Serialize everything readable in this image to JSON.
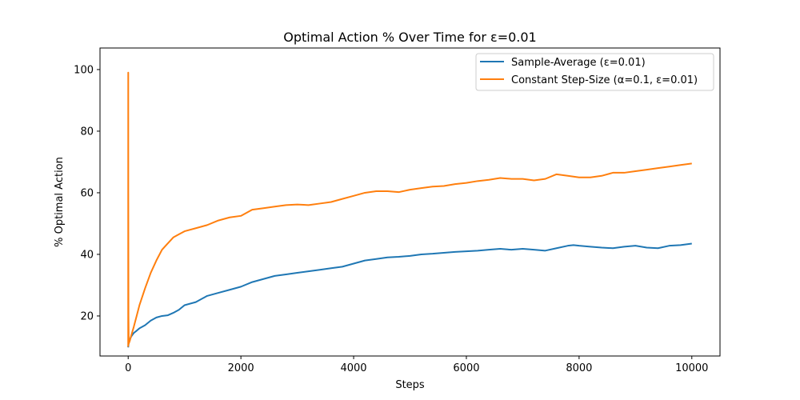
{
  "chart_data": {
    "type": "line",
    "title": "Optimal Action % Over Time for ε=0.01",
    "xlabel": "Steps",
    "ylabel": "% Optimal Action",
    "xlim": [
      -500,
      10500
    ],
    "ylim": [
      7,
      107
    ],
    "xticks": [
      0,
      2000,
      4000,
      6000,
      8000,
      10000
    ],
    "yticks": [
      20,
      40,
      60,
      80,
      100
    ],
    "grid": false,
    "legend_position": "upper right",
    "series": [
      {
        "name": "Sample-Average (ε=0.01)",
        "color": "#1f77b4",
        "x": [
          0,
          10,
          30,
          60,
          100,
          150,
          200,
          300,
          400,
          500,
          600,
          700,
          800,
          900,
          1000,
          1200,
          1400,
          1600,
          1800,
          2000,
          2200,
          2400,
          2600,
          2800,
          3000,
          3200,
          3400,
          3600,
          3800,
          4000,
          4200,
          4400,
          4600,
          4800,
          5000,
          5200,
          5400,
          5600,
          5800,
          6000,
          6200,
          6400,
          6600,
          6800,
          7000,
          7200,
          7400,
          7600,
          7800,
          7900,
          8000,
          8200,
          8400,
          8600,
          8800,
          9000,
          9200,
          9400,
          9600,
          9800,
          10000
        ],
        "y": [
          9.8,
          11.5,
          12.5,
          13.5,
          14.5,
          15.2,
          16,
          17,
          18.5,
          19.5,
          20,
          20.2,
          21,
          22,
          23.5,
          24.5,
          26.5,
          27.5,
          28.5,
          29.5,
          31,
          32,
          33,
          33.5,
          34,
          34.5,
          35,
          35.5,
          36,
          37,
          38,
          38.5,
          39,
          39.2,
          39.5,
          40,
          40.2,
          40.5,
          40.8,
          41,
          41.2,
          41.5,
          41.8,
          41.5,
          41.8,
          41.5,
          41.2,
          42,
          42.8,
          43,
          42.8,
          42.5,
          42.2,
          42,
          42.5,
          42.8,
          42.2,
          42,
          42.8,
          43,
          43.5
        ]
      },
      {
        "name": "Constant Step-Size (α=0.1, ε=0.01)",
        "color": "#ff7f0e",
        "x": [
          0,
          1,
          2,
          5,
          10,
          30,
          60,
          100,
          150,
          200,
          300,
          400,
          500,
          600,
          700,
          800,
          900,
          1000,
          1200,
          1400,
          1600,
          1800,
          2000,
          2200,
          2400,
          2600,
          2800,
          3000,
          3200,
          3400,
          3600,
          3800,
          4000,
          4200,
          4400,
          4600,
          4800,
          5000,
          5200,
          5400,
          5600,
          5800,
          6000,
          6200,
          6400,
          6600,
          6800,
          7000,
          7200,
          7400,
          7600,
          7800,
          8000,
          8200,
          8400,
          8600,
          8800,
          9000,
          9200,
          9400,
          9600,
          9800,
          10000
        ],
        "y": [
          10,
          99,
          60,
          20,
          11,
          12,
          14,
          16.5,
          20,
          23.5,
          29,
          34,
          38,
          41.5,
          43.5,
          45.5,
          46.5,
          47.5,
          48.5,
          49.5,
          51,
          52,
          52.5,
          54.5,
          55,
          55.5,
          56,
          56.2,
          56,
          56.5,
          57,
          58,
          59,
          60,
          60.5,
          60.5,
          60.2,
          61,
          61.5,
          62,
          62.2,
          62.8,
          63.2,
          63.8,
          64.2,
          64.8,
          64.5,
          64.5,
          64,
          64.5,
          66,
          65.5,
          65,
          65,
          65.5,
          66.5,
          66.5,
          67,
          67.5,
          68,
          68.5,
          69,
          69.5
        ]
      }
    ]
  }
}
